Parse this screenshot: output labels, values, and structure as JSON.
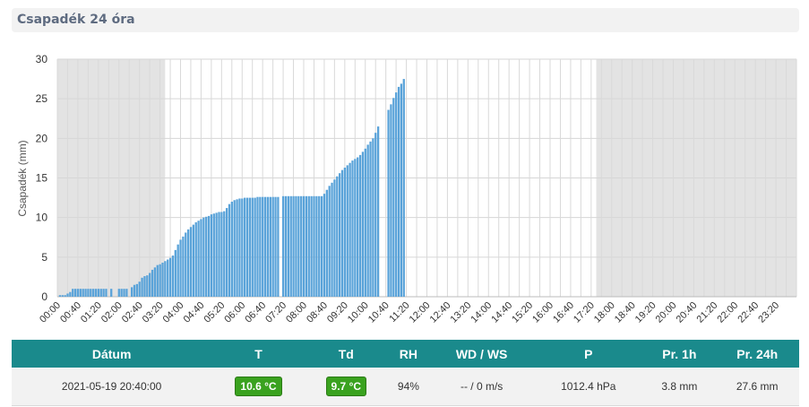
{
  "header": {
    "title": "Csapadék 24 óra"
  },
  "chart_data": {
    "type": "bar",
    "ylabel": "Csapadék (mm)",
    "ylim": [
      0,
      30
    ],
    "yticks": [
      "0",
      "5",
      "10",
      "15",
      "20",
      "25",
      "30"
    ],
    "xticks": [
      "00:00",
      "00:40",
      "01:20",
      "02:00",
      "02:40",
      "03:20",
      "04:00",
      "04:40",
      "05:20",
      "06:00",
      "06:40",
      "07:20",
      "08:00",
      "08:40",
      "09:20",
      "10:00",
      "10:40",
      "11:20",
      "12:00",
      "12:40",
      "13:20",
      "14:00",
      "14:40",
      "15:20",
      "16:00",
      "16:40",
      "17:20",
      "18:00",
      "18:40",
      "19:20",
      "20:00",
      "20:40",
      "21:20",
      "22:00",
      "22:40",
      "23:20"
    ],
    "grid": true,
    "bar_color": "#5aa3d9",
    "shaded_color": "#e3e3e3",
    "values": [
      0.2,
      0.2,
      0.2,
      0.4,
      0.6,
      1.0,
      1.0,
      1.0,
      1.0,
      1.0,
      1.0,
      1.0,
      1.0,
      1.0,
      1.0,
      1.0,
      1.0,
      1.0,
      1.0,
      null,
      1.0,
      null,
      null,
      1.0,
      1.0,
      1.0,
      1.0,
      null,
      1.2,
      1.5,
      1.6,
      1.9,
      2.4,
      2.6,
      2.7,
      3.0,
      3.4,
      3.7,
      4.0,
      4.1,
      4.3,
      4.5,
      4.7,
      4.9,
      5.2,
      5.9,
      6.6,
      7.2,
      7.6,
      8.1,
      8.5,
      8.8,
      9.1,
      9.4,
      9.6,
      9.8,
      10.0,
      10.1,
      10.2,
      10.4,
      10.5,
      10.6,
      10.7,
      10.7,
      10.8,
      11.2,
      11.7,
      12.0,
      12.2,
      12.3,
      12.4,
      12.4,
      12.5,
      12.5,
      12.5,
      12.5,
      12.5,
      12.6,
      12.6,
      12.6,
      12.6,
      12.6,
      12.6,
      12.6,
      12.6,
      12.6,
      null,
      12.7,
      12.7,
      12.7,
      12.7,
      12.7,
      12.7,
      12.7,
      12.7,
      12.7,
      12.7,
      12.7,
      12.7,
      12.7,
      12.7,
      12.7,
      12.7,
      13.0,
      13.5,
      14.0,
      14.4,
      14.8,
      15.2,
      15.6,
      16.0,
      16.3,
      16.6,
      16.9,
      17.2,
      17.4,
      17.6,
      17.9,
      18.3,
      18.7,
      19.2,
      19.6,
      20.0,
      20.7,
      21.5,
      null,
      null,
      null,
      23.6,
      24.3,
      25.1,
      25.8,
      26.5,
      26.9,
      27.5
    ]
  },
  "table": {
    "headers": [
      "Dátum",
      "T",
      "Td",
      "RH",
      "WD / WS",
      "P",
      "Pr. 1h",
      "Pr. 24h"
    ],
    "row": {
      "datum": "2021-05-19 20:40:00",
      "t": "10.6 °C",
      "td": "9.7 °C",
      "rh": "94%",
      "wd_ws": "-- / 0 m/s",
      "p": "1012.4 hPa",
      "pr1h": "3.8 mm",
      "pr24h": "27.6 mm"
    },
    "badge_color": "#3aa21f",
    "header_color": "#1a8a8c"
  }
}
